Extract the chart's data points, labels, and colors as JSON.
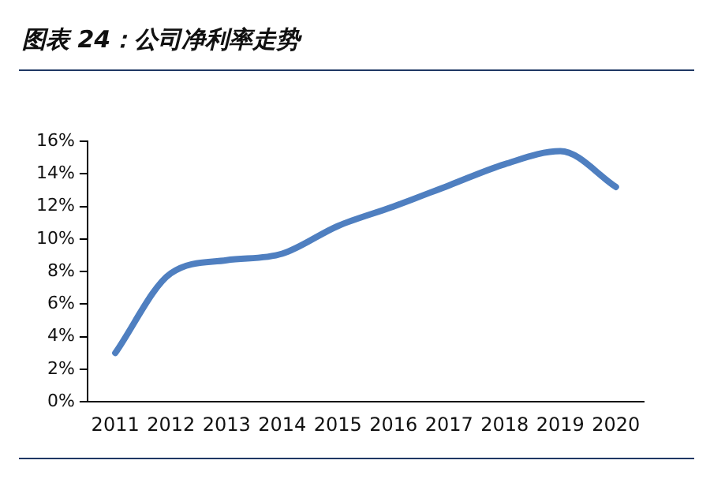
{
  "chart_data": {
    "type": "line",
    "title": "图表 24：公司净利率走势",
    "categories": [
      "2011",
      "2012",
      "2013",
      "2014",
      "2015",
      "2016",
      "2017",
      "2018",
      "2019",
      "2020"
    ],
    "series": [
      {
        "color": "#4f7fc0",
        "values": [
          3.0,
          7.9,
          8.7,
          9.1,
          10.8,
          12.0,
          13.3,
          14.6,
          15.4,
          13.2
        ]
      }
    ],
    "ylim": [
      0,
      16
    ],
    "yticks": [
      {
        "value": 0,
        "label": "0%"
      },
      {
        "value": 2,
        "label": "2%"
      },
      {
        "value": 4,
        "label": "4%"
      },
      {
        "value": 6,
        "label": "6%"
      },
      {
        "value": 8,
        "label": "8%"
      },
      {
        "value": 10,
        "label": "10%"
      },
      {
        "value": 12,
        "label": "12%"
      },
      {
        "value": 14,
        "label": "14%"
      },
      {
        "value": 16,
        "label": "16%"
      }
    ],
    "grid": false,
    "legend": false,
    "marker": "none",
    "line_style": "solid"
  }
}
